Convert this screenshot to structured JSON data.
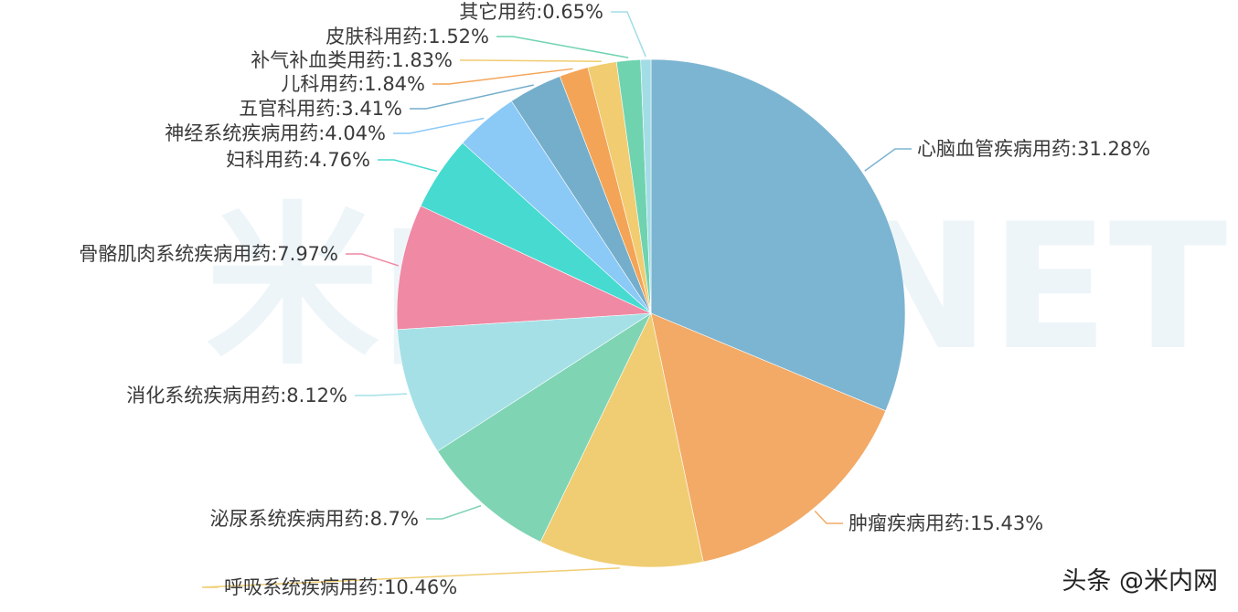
{
  "watermark": "米内MENET",
  "credit": "头条 @米内网",
  "chart_data": {
    "type": "pie",
    "start": "top",
    "direction": "clockwise",
    "slices": [
      {
        "label": "心脑血管疾病用药",
        "value": 31.28,
        "color": "#7cb5d2"
      },
      {
        "label": "肿瘤疾病用药",
        "value": 15.43,
        "color": "#f2aa66"
      },
      {
        "label": "呼吸系统疾病用药",
        "value": 10.46,
        "color": "#f0cd72"
      },
      {
        "label": "泌尿系统疾病用药",
        "value": 8.7,
        "color": "#7fd4b4"
      },
      {
        "label": "消化系统疾病用药",
        "value": 8.12,
        "color": "#a5e0e7"
      },
      {
        "label": "骨骼肌肉系统疾病用药",
        "value": 7.97,
        "color": "#ef89a4"
      },
      {
        "label": "妇科用药",
        "value": 4.76,
        "color": "#46dad1"
      },
      {
        "label": "神经系统疾病用药",
        "value": 4.04,
        "color": "#8bc9f6"
      },
      {
        "label": "五官科用药",
        "value": 3.41,
        "color": "#74aecb"
      },
      {
        "label": "儿科用药",
        "value": 1.84,
        "color": "#f4a456"
      },
      {
        "label": "补气补血类用药",
        "value": 1.83,
        "color": "#f1cc70"
      },
      {
        "label": "皮肤科用药",
        "value": 1.52,
        "color": "#6fd3b0"
      },
      {
        "label": "其它用药",
        "value": 0.65,
        "color": "#a2dde6"
      }
    ]
  }
}
